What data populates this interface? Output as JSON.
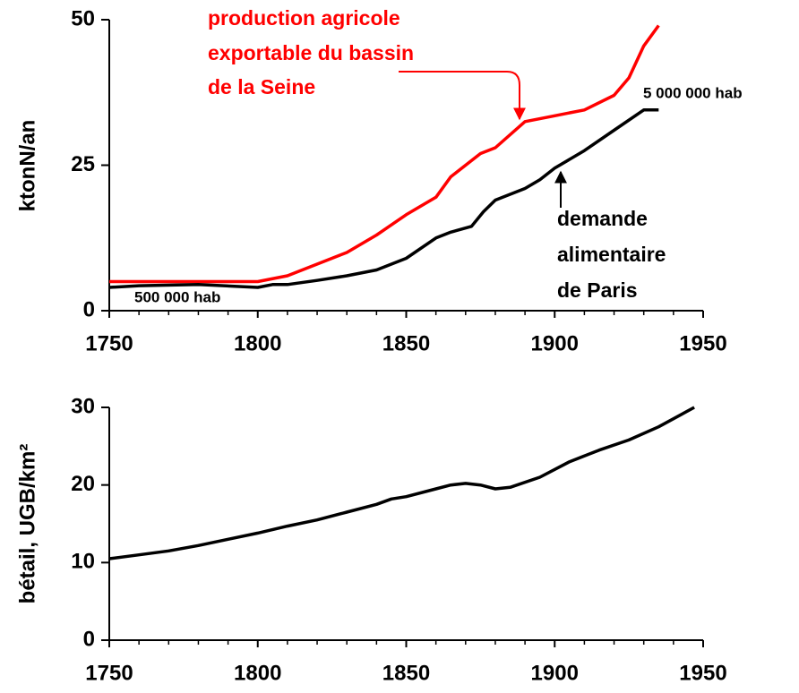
{
  "chart_data": [
    {
      "type": "line",
      "ylabel": "ktonN/an",
      "xlim": [
        1750,
        1950
      ],
      "xticks": [
        1750,
        1800,
        1850,
        1900,
        1950
      ],
      "ylim": [
        0,
        50
      ],
      "yticks": [
        0,
        25,
        50
      ],
      "series": [
        {
          "color": "#ff0000",
          "x": [
            1750,
            1800,
            1810,
            1820,
            1830,
            1840,
            1850,
            1860,
            1865,
            1870,
            1875,
            1880,
            1890,
            1900,
            1910,
            1920,
            1925,
            1930,
            1935
          ],
          "values": [
            5,
            5,
            6,
            8,
            10,
            13,
            16.5,
            19.5,
            23,
            25,
            27,
            28,
            32.5,
            33.5,
            34.5,
            37,
            40,
            45.5,
            49
          ]
        },
        {
          "color": "#000000",
          "x": [
            1750,
            1760,
            1780,
            1800,
            1805,
            1810,
            1820,
            1830,
            1840,
            1850,
            1860,
            1865,
            1872,
            1876,
            1880,
            1890,
            1895,
            1900,
            1910,
            1920,
            1930,
            1935
          ],
          "values": [
            4,
            4.3,
            4.5,
            4,
            4.5,
            4.5,
            5.2,
            6,
            7,
            9,
            12.5,
            13.5,
            14.5,
            17,
            19,
            21,
            22.5,
            24.5,
            27.5,
            31,
            34.5,
            34.5
          ]
        }
      ],
      "annotations": [
        {
          "color": "#ff0000",
          "lines": [
            "production agricole",
            "exportable du bassin",
            "de la Seine"
          ]
        },
        {
          "color": "#000000",
          "lines": [
            "5 000 000 hab"
          ]
        },
        {
          "color": "#000000",
          "lines": [
            "demande",
            "alimentaire",
            "de Paris"
          ]
        },
        {
          "color": "#000000",
          "lines": [
            "500 000 hab"
          ]
        }
      ]
    },
    {
      "type": "line",
      "ylabel": "bétail, UGB/km²",
      "xlim": [
        1750,
        1950
      ],
      "xticks": [
        1750,
        1800,
        1850,
        1900,
        1950
      ],
      "ylim": [
        0,
        30
      ],
      "yticks": [
        0,
        10,
        20,
        30
      ],
      "series": [
        {
          "color": "#000000",
          "x": [
            1750,
            1760,
            1770,
            1780,
            1790,
            1800,
            1810,
            1820,
            1830,
            1840,
            1845,
            1850,
            1860,
            1865,
            1870,
            1875,
            1880,
            1885,
            1895,
            1905,
            1915,
            1925,
            1935,
            1947
          ],
          "values": [
            10.5,
            11,
            11.5,
            12.2,
            13,
            13.8,
            14.7,
            15.5,
            16.5,
            17.5,
            18.2,
            18.5,
            19.5,
            20,
            20.2,
            20,
            19.5,
            19.7,
            21,
            23,
            24.5,
            25.8,
            27.5,
            30
          ]
        }
      ]
    }
  ]
}
